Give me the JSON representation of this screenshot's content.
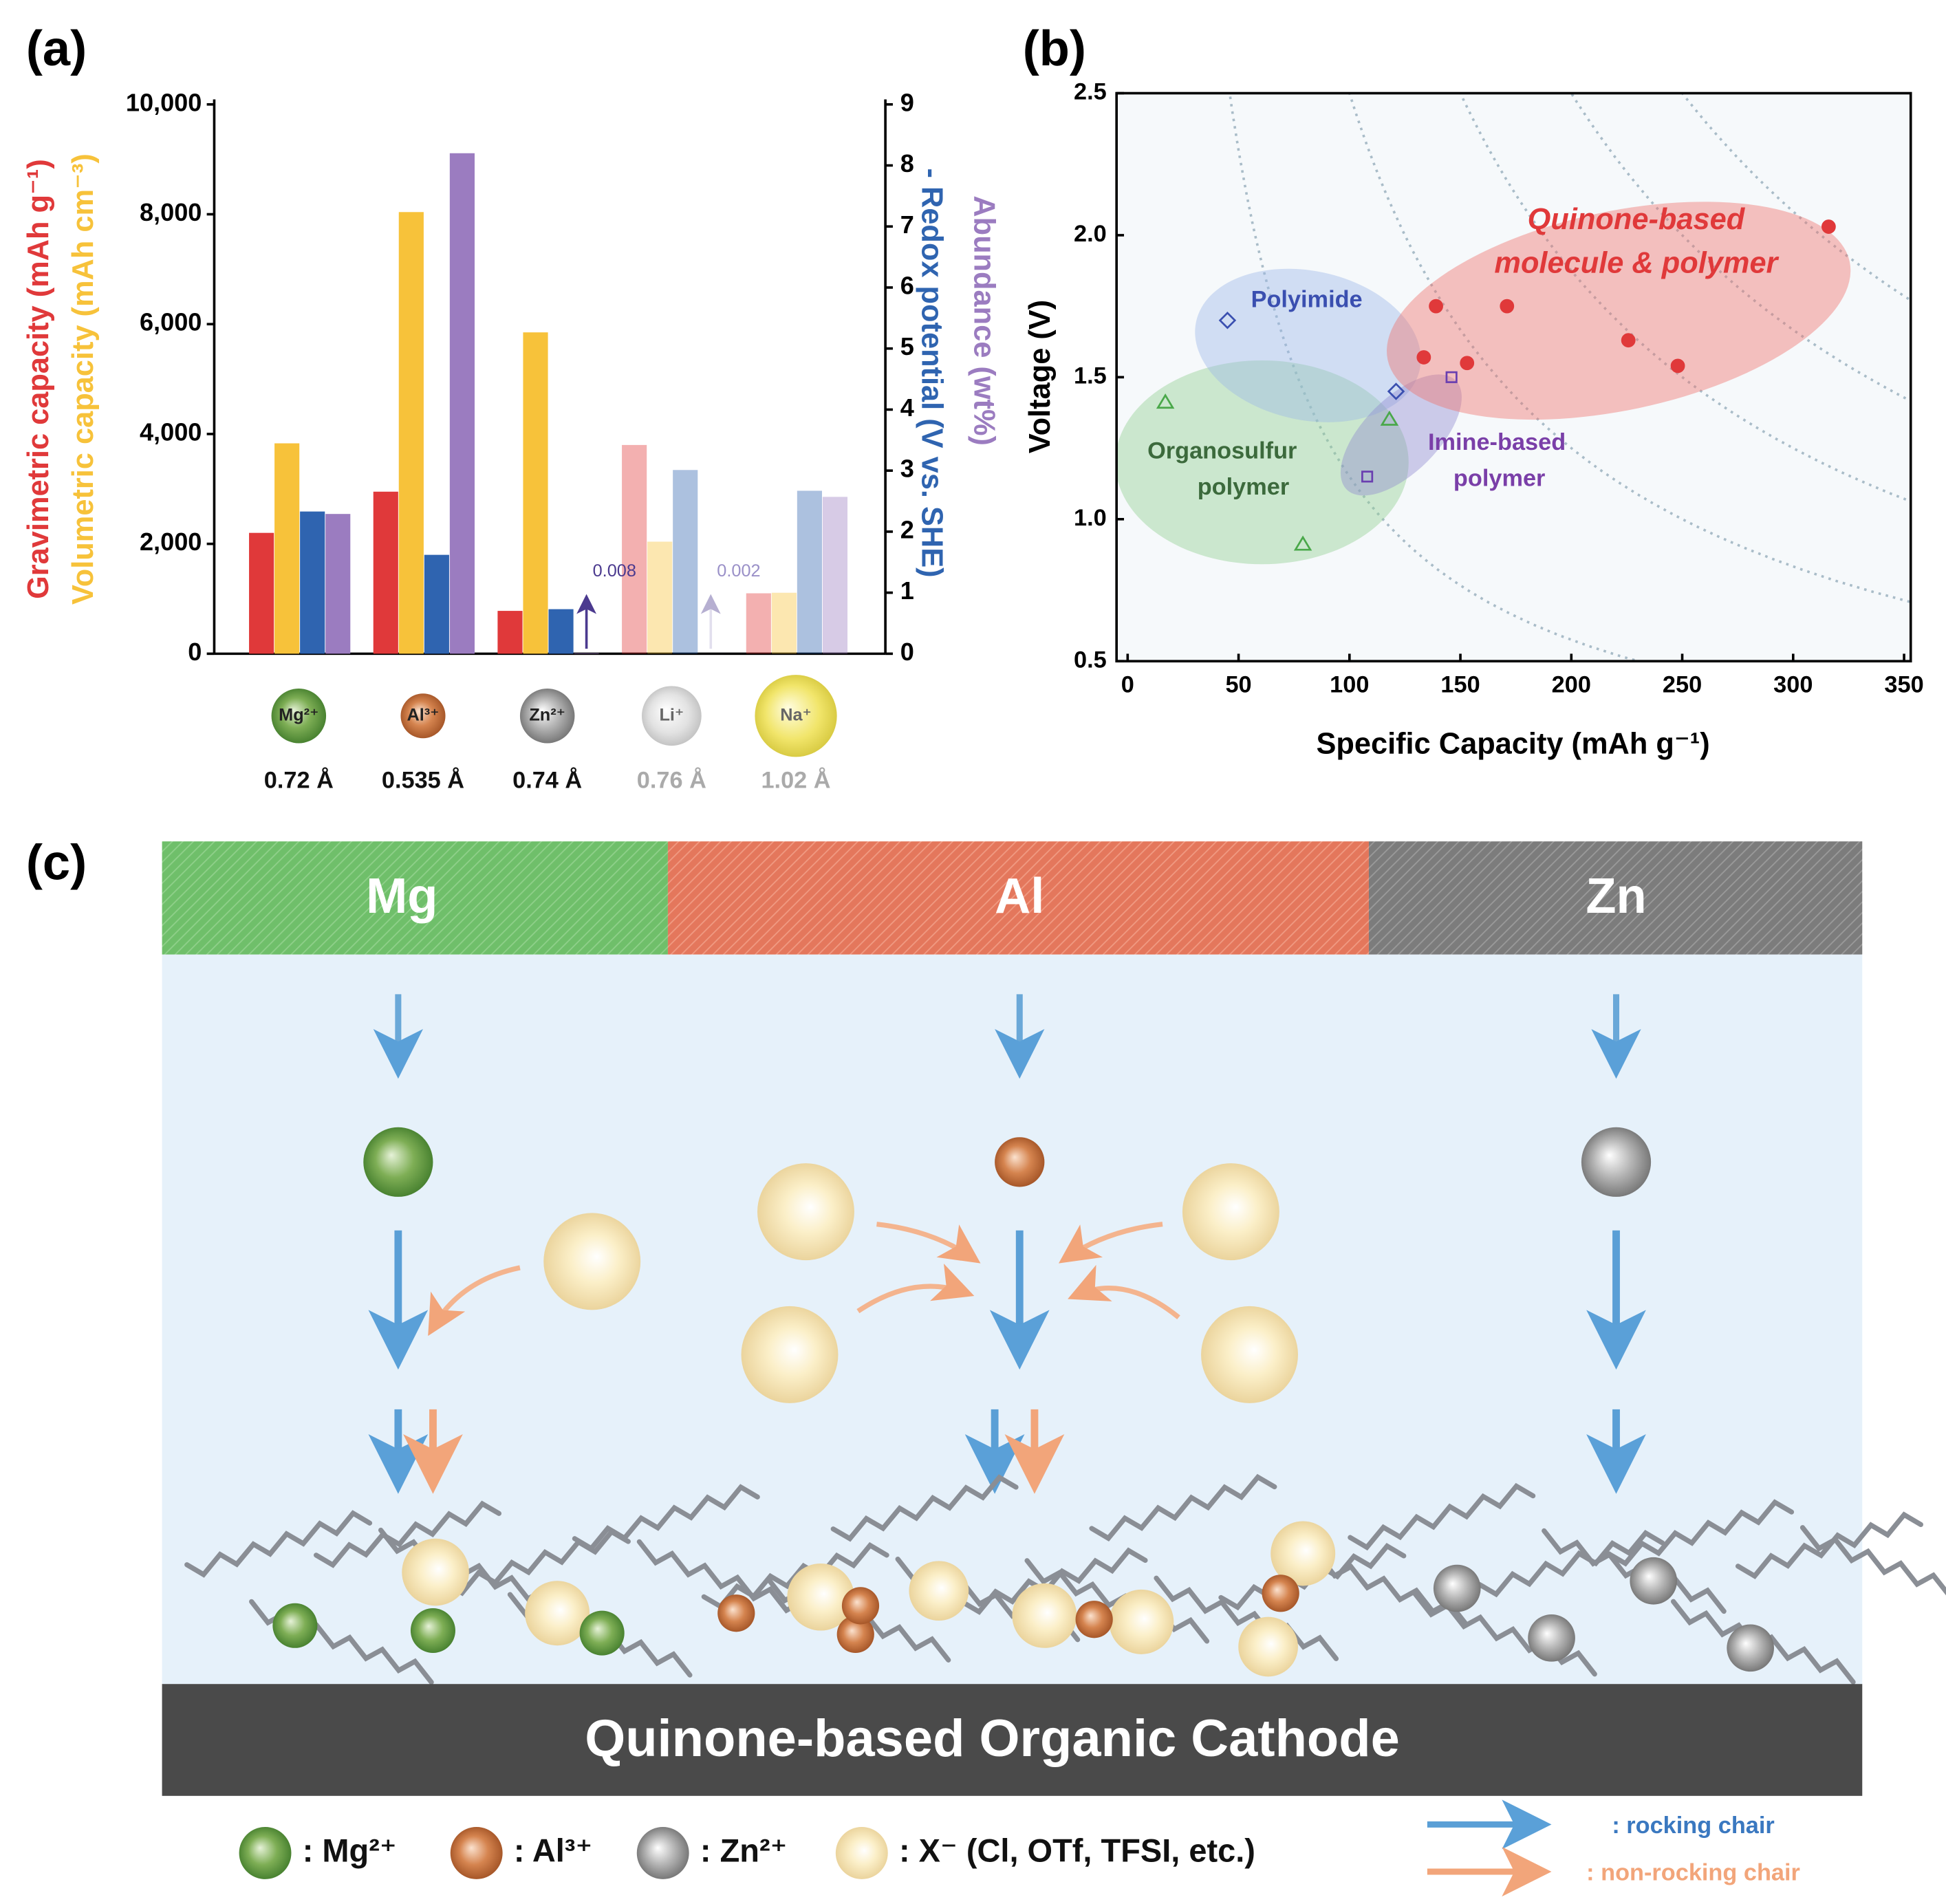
{
  "panel_labels": [
    "(a)",
    "(b)",
    "(c)"
  ],
  "chart_data": [
    {
      "type": "bar",
      "categories": [
        "Mg²⁺",
        "Al³⁺",
        "Zn²⁺",
        "Li⁺",
        "Na⁺"
      ],
      "ionic_radii": [
        "0.72 Å",
        "0.535 Å",
        "0.74 Å",
        "0.76 Å",
        "1.02 Å"
      ],
      "faded": [
        false,
        false,
        false,
        true,
        true
      ],
      "series": [
        {
          "name": "Gravimetric capacity (mAh g⁻¹)",
          "color": "#e0393a",
          "values": [
            2200,
            2950,
            780,
            3800,
            1100
          ]
        },
        {
          "name": "Volumetric capacity (mAh cm⁻³)",
          "color": "#f7c23a",
          "values": [
            3830,
            8040,
            5850,
            2040,
            1110
          ]
        },
        {
          "name": "- Redox potential (V vs. SHE)",
          "color": "#2f64b0",
          "axis": "y2",
          "values": [
            2.33,
            1.62,
            0.73,
            3.01,
            2.67
          ]
        },
        {
          "name": "Abundance (wt%)",
          "color": "#9b7cc0",
          "axis": "y2",
          "values": [
            2.29,
            8.2,
            0.008,
            0.002,
            2.57
          ]
        }
      ],
      "ylim": [
        0,
        10000
      ],
      "yticks": [
        0,
        {
          "value": 2000,
          "label": "2,000"
        },
        {
          "value": 4000,
          "label": "4,000"
        },
        {
          "value": 6000,
          "label": "6,000"
        },
        {
          "value": 8000,
          "label": "8,000"
        },
        {
          "value": 10000,
          "label": "10,000"
        }
      ],
      "y2lim": [
        0,
        9
      ],
      "y2ticks": [
        0,
        1,
        2,
        3,
        4,
        5,
        6,
        7,
        8,
        9
      ]
    },
    {
      "type": "scatter",
      "xlabel": "Specific Capacity (mAh g⁻¹)",
      "ylabel": "Voltage (V)",
      "xlim": [
        -5,
        353
      ],
      "ylim": [
        0.5,
        2.5
      ],
      "xticks": [
        0,
        50,
        100,
        150,
        200,
        250,
        300,
        350
      ],
      "yticks": [
        0.5,
        {
          "value": 1,
          "label": "1.0"
        },
        1.5,
        {
          "value": 2,
          "label": "2.0"
        },
        2.5
      ],
      "series": [
        {
          "color": "#e0393a",
          "marker": "circle",
          "filled": true,
          "x": [
            316,
            139,
            171,
            133.5,
            153,
            225.7,
            248
          ],
          "values": [
            2.03,
            1.75,
            1.75,
            1.57,
            1.55,
            1.63,
            1.54
          ]
        },
        {
          "color": "#3a4fb0",
          "marker": "diamond",
          "filled": false,
          "x": [
            45,
            121
          ],
          "values": [
            1.7,
            1.45
          ]
        },
        {
          "color": "#6a3fb0",
          "marker": "square",
          "filled": false,
          "x": [
            146,
            108
          ],
          "values": [
            1.5,
            1.15
          ]
        },
        {
          "color": "#4aa84a",
          "marker": "triangle",
          "filled": false,
          "x": [
            17,
            79,
            118
          ],
          "values": [
            1.41,
            0.91,
            1.35
          ]
        }
      ],
      "annotations": [
        "Quinone-based",
        "molecule & polymer",
        "Polyimide",
        "Organosulfur",
        "polymer",
        "Imine-based",
        "polymer"
      ]
    }
  ],
  "diagram": {
    "columns": [
      "Mg",
      "Al",
      "Zn"
    ],
    "cathode": "Quinone-based Organic Cathode",
    "legend": [
      ": Mg²⁺",
      ": Al³⁺",
      ": Zn²⁺",
      ": X⁻ (Cl, OTf, TFSI, etc.)"
    ],
    "arrow_legend": [
      ": rocking chair",
      ": non-rocking chair"
    ]
  }
}
